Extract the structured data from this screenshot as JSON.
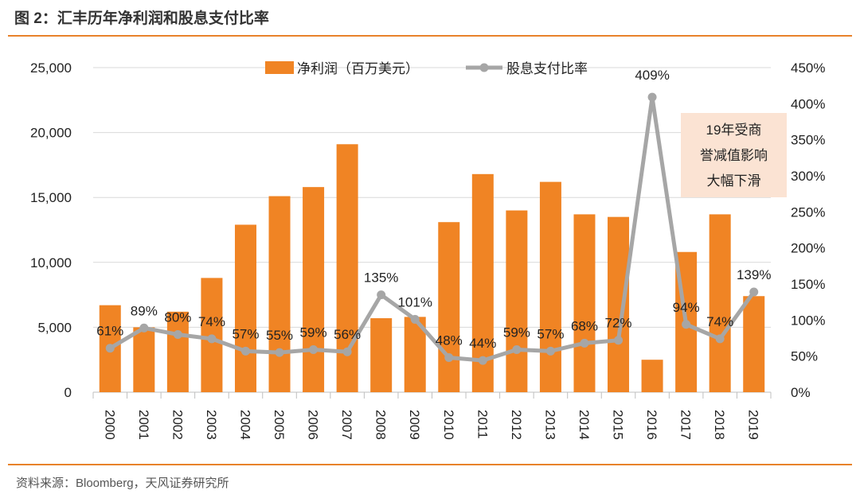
{
  "title": "图 2：汇丰历年净利润和股息支付比率",
  "source": "资料来源：Bloomberg，天风证券研究所",
  "colors": {
    "bar": "#f08424",
    "line": "#a6a6a6",
    "rule": "#e8822a",
    "annotation_bg": "#fbe3d3"
  },
  "chart_data": {
    "type": "bar+line",
    "categories": [
      "2000",
      "2001",
      "2002",
      "2003",
      "2004",
      "2005",
      "2006",
      "2007",
      "2008",
      "2009",
      "2010",
      "2011",
      "2012",
      "2013",
      "2014",
      "2015",
      "2016",
      "2017",
      "2018",
      "2019"
    ],
    "series": [
      {
        "name": "净利润（百万美元）",
        "type": "bar",
        "axis": "left",
        "values": [
          6700,
          5000,
          6200,
          8800,
          12900,
          15100,
          15800,
          19100,
          5700,
          5800,
          13100,
          16800,
          14000,
          16200,
          13700,
          13500,
          2500,
          10800,
          13700,
          7400
        ]
      },
      {
        "name": "股息支付比率",
        "type": "line",
        "axis": "right",
        "values": [
          61,
          89,
          80,
          74,
          57,
          55,
          59,
          56,
          135,
          101,
          48,
          44,
          59,
          57,
          68,
          72,
          409,
          94,
          74,
          139
        ],
        "labels": [
          "61%",
          "89%",
          "80%",
          "74%",
          "57%",
          "55%",
          "59%",
          "56%",
          "135%",
          "101%",
          "48%",
          "44%",
          "59%",
          "57%",
          "68%",
          "72%",
          "409%",
          "94%",
          "74%",
          "139%"
        ]
      }
    ],
    "ylim_left": [
      0,
      25000
    ],
    "ylim_right": [
      0,
      450
    ],
    "yticks_left": [
      "0",
      "5,000",
      "10,000",
      "15,000",
      "20,000",
      "25,000"
    ],
    "yticks_right": [
      "0%",
      "50%",
      "100%",
      "150%",
      "200%",
      "250%",
      "300%",
      "350%",
      "400%",
      "450%"
    ],
    "legend_position": "top",
    "grid": "horizontal",
    "annotation": [
      "19年受商",
      "誉减值影响",
      "大幅下滑"
    ]
  }
}
